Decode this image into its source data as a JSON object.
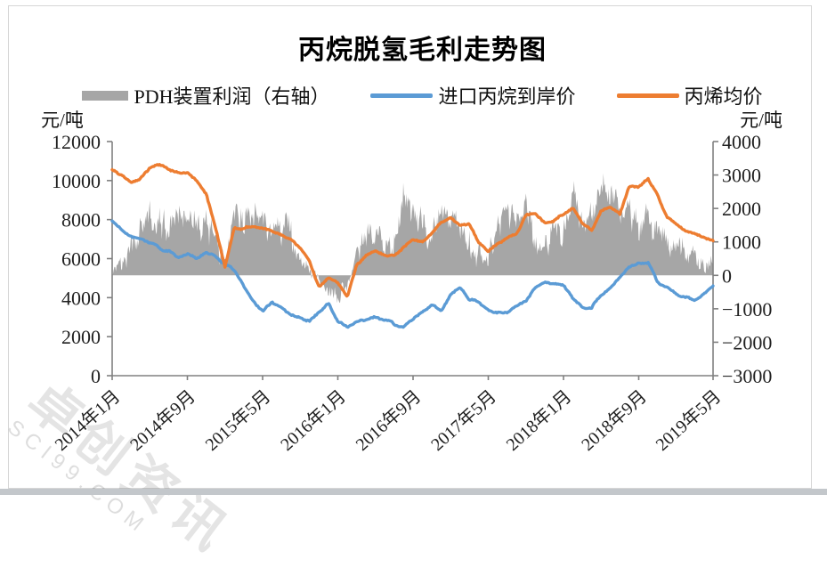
{
  "card": {
    "title": "丙烷脱氢毛利走势图"
  },
  "units": {
    "left": "元/吨",
    "right": "元/吨"
  },
  "watermark": {
    "line_cn": "卓创资讯",
    "line_en": "SCI99.COM"
  },
  "colors": {
    "area": "#A6A6A6",
    "blue": "#5B9BD5",
    "orange": "#ED7D31",
    "axis": "#808080"
  },
  "chart_data": {
    "type": "line+area",
    "title": "丙烷脱氢毛利走势图",
    "x_interval": "monthly",
    "x_start": "2014-01",
    "x_end": "2019-05",
    "grid": false,
    "legend_position": "top",
    "x_tick_labels": [
      "2014年1月",
      "2014年9月",
      "2015年5月",
      "2016年1月",
      "2016年9月",
      "2017年5月",
      "2018年1月",
      "2018年9月",
      "2019年5月"
    ],
    "x_tick_month_offsets": [
      0,
      8,
      16,
      24,
      32,
      40,
      48,
      56,
      64
    ],
    "left_axis": {
      "unit": "元/吨",
      "min": 0,
      "max": 12000,
      "tick_step": 2000,
      "tick_labels": [
        "0",
        "2000",
        "4000",
        "6000",
        "8000",
        "10000",
        "12000"
      ]
    },
    "right_axis": {
      "unit": "元/吨",
      "min": -3000,
      "max": 4000,
      "tick_step": 1000,
      "tick_labels": [
        "−3000",
        "−2000",
        "−1000",
        "0",
        "1000",
        "2000",
        "3000",
        "4000"
      ]
    },
    "series": [
      {
        "name": "PDH装置利润（右轴）",
        "axis": "right",
        "type": "area",
        "color": "#A6A6A6",
        "monthly_values": [
          100,
          400,
          800,
          1300,
          1700,
          1500,
          1600,
          1700,
          1500,
          1400,
          1500,
          1000,
          500,
          1500,
          1700,
          1800,
          1600,
          1500,
          1400,
          1200,
          500,
          100,
          -200,
          -400,
          -500,
          -300,
          700,
          1100,
          1200,
          1000,
          900,
          2300,
          1900,
          1400,
          1300,
          1800,
          1700,
          1400,
          900,
          700,
          600,
          1300,
          2000,
          1800,
          2100,
          1100,
          800,
          1300,
          1000,
          2500,
          1400,
          2100,
          2400,
          2400,
          1800,
          1900,
          1600,
          1900,
          1200,
          1000,
          1100,
          800,
          500,
          300,
          300
        ]
      },
      {
        "name": "进口丙烷到岸价",
        "axis": "left",
        "type": "line",
        "color": "#5B9BD5",
        "monthly_values": [
          7900,
          7450,
          7150,
          7050,
          6800,
          6550,
          6400,
          6100,
          6200,
          6100,
          6350,
          6100,
          5750,
          5300,
          4550,
          3800,
          3250,
          3800,
          3400,
          3050,
          2900,
          2850,
          3300,
          3800,
          2750,
          2550,
          2750,
          2950,
          3050,
          2900,
          2600,
          2550,
          2950,
          3350,
          3600,
          3400,
          4150,
          4600,
          3950,
          3700,
          3400,
          3200,
          3150,
          3550,
          3900,
          4550,
          4750,
          4700,
          4600,
          3900,
          3550,
          3450,
          4100,
          4400,
          5000,
          5500,
          5750,
          5800,
          4750,
          4500,
          4150,
          3950,
          3850,
          4250,
          4700
        ]
      },
      {
        "name": "丙烯均价",
        "axis": "left",
        "type": "line",
        "color": "#ED7D31",
        "monthly_values": [
          10550,
          10350,
          9950,
          10150,
          10600,
          10750,
          10600,
          10500,
          10350,
          9950,
          9350,
          7600,
          5600,
          7650,
          7550,
          7600,
          7500,
          7450,
          7150,
          7050,
          6550,
          5800,
          4550,
          4950,
          4750,
          4100,
          5700,
          6100,
          6350,
          6100,
          6150,
          6600,
          6950,
          6850,
          7300,
          7900,
          8000,
          7750,
          7800,
          6800,
          6350,
          6800,
          7100,
          7350,
          8200,
          8250,
          7800,
          7950,
          8200,
          8550,
          7800,
          7500,
          8400,
          8550,
          8250,
          9700,
          9600,
          10050,
          9300,
          8100,
          7700,
          7350,
          7200,
          7050,
          6900
        ]
      }
    ]
  }
}
